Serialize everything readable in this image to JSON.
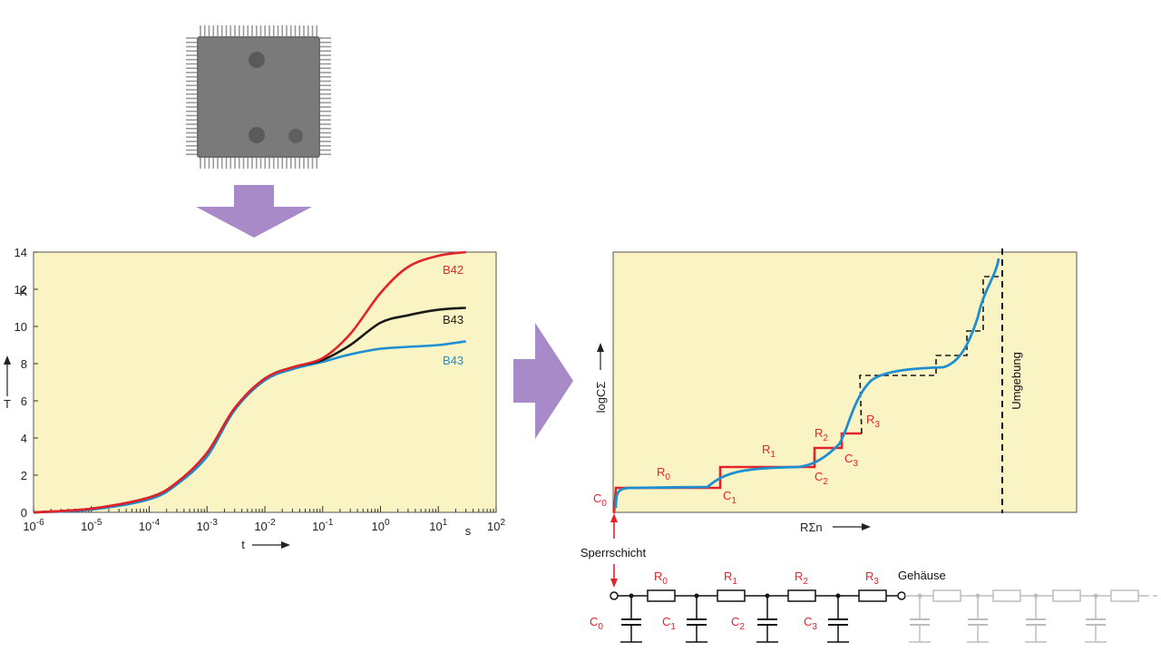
{
  "colors": {
    "panel_bg": "#faf4c4",
    "red": "#e2232b",
    "blue": "#1e8fd0",
    "black": "#1a1a1a",
    "arrow": "#a98ac8",
    "gray": "#bdbdbd"
  },
  "icons": {
    "chip": "ic-chip-icon",
    "arrow_down": "process-arrow-down-icon",
    "arrow_right": "process-arrow-right-icon"
  },
  "left_chart": {
    "y_unit": "K",
    "y_label": "T",
    "x_label": "t",
    "x_unit": "s",
    "y_ticks": [
      "0",
      "2",
      "4",
      "6",
      "8",
      "10",
      "12",
      "14"
    ],
    "x_tick_exponents": [
      "-6",
      "-5",
      "-4",
      "-3",
      "-2",
      "-1",
      "0",
      "1",
      "2"
    ],
    "series_labels": [
      "B42",
      "B43",
      "B43"
    ]
  },
  "chart_data": {
    "type": "line",
    "x_scale": "log",
    "xlim": [
      1e-06,
      100
    ],
    "ylim": [
      0,
      14
    ],
    "xlabel": "t",
    "ylabel": "T",
    "y_unit": "K",
    "x_unit": "s",
    "series": [
      {
        "name": "B42",
        "color": "#e2232b",
        "x": [
          1e-06,
          1e-05,
          0.0001,
          0.0003,
          0.001,
          0.003,
          0.01,
          0.03,
          0.1,
          0.3,
          1,
          3,
          10,
          30
        ],
        "y": [
          0,
          0.2,
          0.8,
          1.6,
          3.2,
          5.6,
          7.2,
          7.8,
          8.3,
          9.6,
          11.8,
          13.2,
          13.8,
          14
        ]
      },
      {
        "name": "B43",
        "color": "#1a1a1a",
        "x": [
          1e-06,
          1e-05,
          0.0001,
          0.0003,
          0.001,
          0.003,
          0.01,
          0.03,
          0.1,
          0.3,
          1,
          3,
          10,
          30
        ],
        "y": [
          0,
          0.2,
          0.8,
          1.6,
          3.2,
          5.6,
          7.2,
          7.8,
          8.2,
          9.0,
          10.2,
          10.6,
          10.9,
          11
        ]
      },
      {
        "name": "B43",
        "color": "#1e8fd0",
        "x": [
          1e-06,
          1e-05,
          0.0001,
          0.0003,
          0.001,
          0.003,
          0.01,
          0.03,
          0.1,
          0.3,
          1,
          3,
          10,
          30
        ],
        "y": [
          0,
          0.15,
          0.7,
          1.5,
          3.0,
          5.5,
          7.1,
          7.7,
          8.1,
          8.5,
          8.8,
          8.9,
          9.0,
          9.2
        ]
      }
    ]
  },
  "right_chart": {
    "y_label": "logCΣ",
    "x_label": "RΣn",
    "boundary_label": "Umgebung",
    "step_labels": [
      {
        "sym": "R",
        "sub": "0"
      },
      {
        "sym": "R",
        "sub": "1"
      },
      {
        "sym": "R",
        "sub": "2"
      },
      {
        "sym": "R",
        "sub": "3"
      },
      {
        "sym": "C",
        "sub": "0"
      },
      {
        "sym": "C",
        "sub": "1"
      },
      {
        "sym": "C",
        "sub": "2"
      },
      {
        "sym": "C",
        "sub": "3"
      }
    ]
  },
  "circuit": {
    "junction_label": "Sperrschicht",
    "package_label": "Gehäuse",
    "resistors": [
      {
        "sym": "R",
        "sub": "0"
      },
      {
        "sym": "R",
        "sub": "1"
      },
      {
        "sym": "R",
        "sub": "2"
      },
      {
        "sym": "R",
        "sub": "3"
      }
    ],
    "capacitors": [
      {
        "sym": "C",
        "sub": "0"
      },
      {
        "sym": "C",
        "sub": "1"
      },
      {
        "sym": "C",
        "sub": "2"
      },
      {
        "sym": "C",
        "sub": "3"
      }
    ]
  }
}
